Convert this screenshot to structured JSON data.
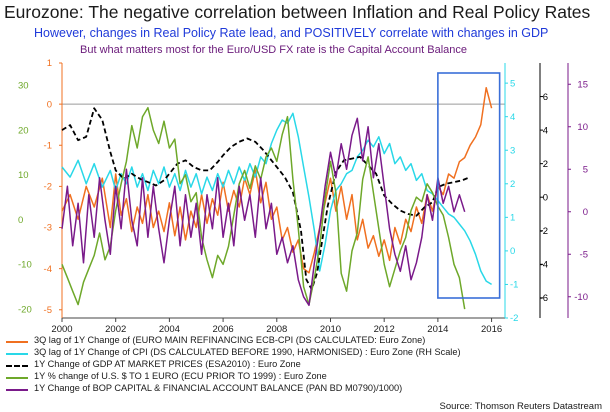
{
  "chart_data": {
    "type": "line",
    "title": "Eurozone: The negative correlation between Inflation and Real Policy Rates",
    "subtitle": "However, changes in Real Policy Rate lead, and POSITIVELY correlate with changes in GDP",
    "subtitle2": "But what matters most for the Euro/USD FX rate is the Capital Account Balance",
    "source": "Source: Thomson Reuters Datastream",
    "x_ticks": [
      "2000",
      "2002",
      "2004",
      "2006",
      "2008",
      "2010",
      "2012",
      "2014",
      "2016"
    ],
    "xlim": [
      2000,
      2016.5
    ],
    "axes": {
      "left_outer": {
        "ticks": [
          "30",
          "20",
          "10",
          "0",
          "-10",
          "-20"
        ],
        "ylim": [
          -22,
          35
        ],
        "color": "#6ea82a"
      },
      "left_inner": {
        "ticks": [
          "1",
          "0",
          "-1",
          "-2",
          "-3",
          "-4",
          "-5"
        ],
        "ylim": [
          -5.2,
          1.0
        ],
        "color": "#f07020"
      },
      "right_inner": {
        "ticks": [
          "-2",
          "-1",
          "0",
          "1",
          "2",
          "3",
          "4",
          "5"
        ],
        "ylim": [
          -2.0,
          5.6
        ],
        "color": "#29d8e8"
      },
      "right_mid": {
        "ticks": [
          "6",
          "4",
          "2",
          "0",
          "-2",
          "-4",
          "-6"
        ],
        "ylim": [
          -7.2,
          8.0
        ],
        "color": "#000000"
      },
      "right_outer": {
        "ticks": [
          "15",
          "10",
          "5",
          "0",
          "-5",
          "-10"
        ],
        "ylim": [
          -12.5,
          17.5
        ],
        "color": "#7a1a8a"
      }
    },
    "reference_line": {
      "axis": "left_inner",
      "value": 0
    },
    "highlight_box": {
      "x_range": [
        2014.0,
        2016.3
      ],
      "color": "#3a6fd8"
    },
    "series": [
      {
        "name": "3Q lag of 1Y Change of (EURO MAIN REFINANCING ECB-CPI (DS CALCULATED: Euro Zone)",
        "axis": "left_inner",
        "color": "#f07020",
        "dash": false,
        "x": [
          2000,
          2000.3,
          2000.6,
          2000.9,
          2001.2,
          2001.5,
          2001.8,
          2002,
          2002.2,
          2002.4,
          2002.6,
          2002.8,
          2003,
          2003.2,
          2003.4,
          2003.6,
          2003.8,
          2004,
          2004.2,
          2004.4,
          2004.6,
          2004.8,
          2005,
          2005.2,
          2005.4,
          2005.6,
          2005.8,
          2006,
          2006.2,
          2006.4,
          2006.6,
          2006.8,
          2007,
          2007.2,
          2007.4,
          2007.6,
          2007.8,
          2008,
          2008.2,
          2008.4,
          2008.6,
          2008.8,
          2009,
          2009.2,
          2009.4,
          2009.6,
          2009.8,
          2010,
          2010.2,
          2010.4,
          2010.6,
          2010.8,
          2011,
          2011.2,
          2011.4,
          2011.6,
          2011.8,
          2012,
          2012.2,
          2012.4,
          2012.6,
          2012.8,
          2013,
          2013.2,
          2013.4,
          2013.6,
          2013.8,
          2014,
          2014.2,
          2014.4,
          2014.6,
          2014.8,
          2015,
          2015.2,
          2015.4,
          2015.6,
          2015.8,
          2016
        ],
        "y": [
          -2.6,
          -2.2,
          -2.8,
          -2.0,
          -2.5,
          -1.8,
          -3.0,
          -1.7,
          -2.7,
          -2.3,
          -3.1,
          -2.5,
          -2.9,
          -2.2,
          -3.0,
          -2.6,
          -3.1,
          -2.4,
          -3.2,
          -2.5,
          -3.3,
          -2.6,
          -3.0,
          -2.2,
          -2.9,
          -2.3,
          -2.7,
          -1.9,
          -2.6,
          -2.1,
          -2.5,
          -1.8,
          -2.2,
          -1.6,
          -2.4,
          -1.9,
          -2.8,
          -2.5,
          -3.3,
          -3.0,
          -3.6,
          -3.3,
          -4.0,
          -4.1,
          -3.6,
          -3.0,
          -2.4,
          -1.8,
          -2.6,
          -2.0,
          -2.8,
          -2.2,
          -3.3,
          -2.8,
          -3.5,
          -3.2,
          -3.7,
          -3.3,
          -3.8,
          -3.0,
          -3.4,
          -2.8,
          -3.1,
          -2.5,
          -2.9,
          -2.2,
          -2.6,
          -2.0,
          -2.2,
          -1.7,
          -1.8,
          -1.4,
          -1.3,
          -1.0,
          -0.8,
          -0.5,
          0.4,
          -0.1
        ]
      },
      {
        "name": "3Q lag of 1Y Change of CPI (DS CALCULATED BEFORE 1990, HARMONISED) : Euro Zone (RH Scale)",
        "axis": "right_inner",
        "color": "#29d8e8",
        "dash": false,
        "x": [
          2000,
          2000.3,
          2000.6,
          2000.9,
          2001.2,
          2001.5,
          2001.8,
          2002,
          2002.2,
          2002.4,
          2002.6,
          2002.8,
          2003,
          2003.2,
          2003.4,
          2003.6,
          2003.8,
          2004,
          2004.2,
          2004.4,
          2004.6,
          2004.8,
          2005,
          2005.2,
          2005.4,
          2005.6,
          2005.8,
          2006,
          2006.2,
          2006.4,
          2006.6,
          2006.8,
          2007,
          2007.2,
          2007.4,
          2007.6,
          2007.8,
          2008,
          2008.2,
          2008.4,
          2008.6,
          2008.8,
          2009,
          2009.2,
          2009.4,
          2009.6,
          2009.8,
          2010,
          2010.2,
          2010.4,
          2010.6,
          2010.8,
          2011,
          2011.2,
          2011.4,
          2011.6,
          2011.8,
          2012,
          2012.2,
          2012.4,
          2012.6,
          2012.8,
          2013,
          2013.2,
          2013.4,
          2013.6,
          2013.8,
          2014,
          2014.2,
          2014.4,
          2014.6,
          2014.8,
          2015,
          2015.2,
          2015.4,
          2015.6,
          2015.8,
          2016
        ],
        "y": [
          2.5,
          2.2,
          2.7,
          2.0,
          2.6,
          1.9,
          2.4,
          1.8,
          2.3,
          2.0,
          2.5,
          1.9,
          2.3,
          1.8,
          2.4,
          2.0,
          2.5,
          1.9,
          2.3,
          1.8,
          2.4,
          1.9,
          2.3,
          1.7,
          2.2,
          1.8,
          2.3,
          1.9,
          2.4,
          2.0,
          2.5,
          2.1,
          2.6,
          2.2,
          2.8,
          2.6,
          3.2,
          3.6,
          3.9,
          3.8,
          4.1,
          3.4,
          2.5,
          1.6,
          0.6,
          -0.6,
          0.2,
          1.2,
          1.8,
          2.0,
          2.3,
          2.4,
          2.8,
          3.0,
          3.3,
          3.1,
          3.4,
          2.9,
          3.2,
          2.6,
          2.8,
          2.4,
          2.6,
          2.1,
          2.3,
          1.8,
          1.7,
          1.5,
          1.3,
          1.1,
          1.0,
          0.8,
          0.6,
          0.3,
          -0.1,
          -0.6,
          -0.9,
          -1.0
        ]
      },
      {
        "name": "1Y Change of GDP AT MARKET PRICES (ESA2010) : Euro Zone",
        "axis": "right_mid",
        "color": "#000000",
        "dash": true,
        "x": [
          2000,
          2000.3,
          2000.6,
          2000.9,
          2001.2,
          2001.5,
          2001.8,
          2002,
          2002.3,
          2002.6,
          2002.9,
          2003.2,
          2003.5,
          2003.8,
          2004,
          2004.3,
          2004.6,
          2004.9,
          2005.2,
          2005.5,
          2005.8,
          2006,
          2006.3,
          2006.6,
          2006.9,
          2007.2,
          2007.5,
          2007.8,
          2008,
          2008.3,
          2008.6,
          2008.9,
          2009.1,
          2009.3,
          2009.5,
          2009.7,
          2009.9,
          2010.2,
          2010.5,
          2010.8,
          2011.1,
          2011.4,
          2011.7,
          2012,
          2012.3,
          2012.6,
          2012.9,
          2013.2,
          2013.5,
          2013.8,
          2014,
          2014.3,
          2014.6,
          2014.9,
          2015.2
        ],
        "y": [
          4.0,
          4.3,
          3.4,
          3.6,
          5.3,
          4.6,
          2.7,
          1.6,
          1.1,
          1.4,
          1.1,
          0.9,
          0.7,
          1.0,
          1.4,
          2.0,
          2.2,
          1.8,
          1.6,
          1.6,
          2.1,
          2.5,
          3.0,
          3.3,
          3.5,
          3.3,
          2.8,
          2.2,
          1.8,
          1.2,
          0.3,
          -2.0,
          -4.9,
          -5.5,
          -4.5,
          -2.5,
          -0.5,
          1.5,
          2.2,
          2.3,
          2.4,
          1.9,
          1.4,
          0.1,
          -0.4,
          -0.8,
          -1.0,
          -1.1,
          -0.6,
          -0.3,
          0.6,
          0.8,
          0.9,
          1.0,
          1.2
        ]
      },
      {
        "name": "1Y % change of U.S. $ TO 1 EURO (ECU PRIOR TO 1999) : Euro Zone",
        "axis": "left_outer",
        "color": "#6ea82a",
        "dash": false,
        "x": [
          2000,
          2000.2,
          2000.4,
          2000.6,
          2000.8,
          2001,
          2001.2,
          2001.4,
          2001.6,
          2001.8,
          2002,
          2002.2,
          2002.4,
          2002.6,
          2002.8,
          2003,
          2003.2,
          2003.4,
          2003.6,
          2003.8,
          2004,
          2004.2,
          2004.4,
          2004.6,
          2004.8,
          2005,
          2005.2,
          2005.4,
          2005.6,
          2005.8,
          2006,
          2006.2,
          2006.4,
          2006.6,
          2006.8,
          2007,
          2007.2,
          2007.4,
          2007.6,
          2007.8,
          2008,
          2008.2,
          2008.4,
          2008.6,
          2008.8,
          2009,
          2009.2,
          2009.4,
          2009.6,
          2009.8,
          2010,
          2010.2,
          2010.4,
          2010.6,
          2010.8,
          2011,
          2011.2,
          2011.4,
          2011.6,
          2011.8,
          2012,
          2012.2,
          2012.4,
          2012.6,
          2012.8,
          2013,
          2013.2,
          2013.4,
          2013.6,
          2013.8,
          2014,
          2014.2,
          2014.4,
          2014.6,
          2014.8,
          2015
        ],
        "y": [
          -10,
          -13,
          -16,
          -19,
          -14,
          -11,
          -8,
          -3,
          -9,
          -6,
          2,
          8,
          13,
          21,
          16,
          23,
          25,
          20,
          17,
          22,
          16,
          18,
          8,
          10,
          4,
          6,
          -4,
          -9,
          -13,
          -8,
          -10,
          -6,
          1,
          8,
          11,
          7,
          12,
          9,
          14,
          16,
          13,
          19,
          23,
          9,
          -2,
          -15,
          -19,
          -13,
          -6,
          5,
          13,
          6,
          -12,
          -16,
          -7,
          -3,
          9,
          14,
          6,
          -2,
          -10,
          -15,
          -11,
          -7,
          -4,
          2,
          5,
          4,
          8,
          6,
          3,
          1,
          -4,
          -10,
          -13,
          -20
        ]
      },
      {
        "name": "1Y Change of  BOP CAPITAL & FINANCIAL ACCOUNT BALANCE (PAN BD M0790)/1000)",
        "axis": "right_outer",
        "color": "#7a1a8a",
        "dash": false,
        "x": [
          2000,
          2000.2,
          2000.4,
          2000.6,
          2000.8,
          2001,
          2001.2,
          2001.4,
          2001.6,
          2001.8,
          2002,
          2002.2,
          2002.4,
          2002.6,
          2002.8,
          2003,
          2003.2,
          2003.4,
          2003.6,
          2003.8,
          2004,
          2004.2,
          2004.4,
          2004.6,
          2004.8,
          2005,
          2005.2,
          2005.4,
          2005.6,
          2005.8,
          2006,
          2006.2,
          2006.4,
          2006.6,
          2006.8,
          2007,
          2007.2,
          2007.4,
          2007.6,
          2007.8,
          2008,
          2008.2,
          2008.4,
          2008.6,
          2008.8,
          2009,
          2009.2,
          2009.4,
          2009.6,
          2009.8,
          2010,
          2010.2,
          2010.4,
          2010.6,
          2010.8,
          2011,
          2011.2,
          2011.4,
          2011.6,
          2011.8,
          2012,
          2012.2,
          2012.4,
          2012.6,
          2012.8,
          2013,
          2013.2,
          2013.4,
          2013.6,
          2013.8,
          2014,
          2014.2,
          2014.4,
          2014.6,
          2014.8,
          2015
        ],
        "y": [
          -2,
          3,
          -4,
          1,
          -6,
          2,
          -3,
          4,
          -1,
          -5,
          3,
          -2,
          5,
          -1,
          -4,
          4,
          -3,
          3,
          -2,
          -6,
          -1,
          3,
          -4,
          2,
          -3,
          1,
          -5,
          2,
          -2,
          4,
          -3,
          1,
          -4,
          3,
          -1,
          2,
          -3,
          4,
          -2,
          1,
          -5,
          -3,
          -6,
          -4,
          -8,
          -10,
          -11,
          -6,
          -2,
          3,
          7,
          4,
          8,
          5,
          9,
          11,
          6,
          10,
          4,
          8,
          3,
          -2,
          -5,
          -7,
          -4,
          -8,
          -6,
          -3,
          2,
          -1,
          4,
          1,
          3,
          0,
          2,
          0
        ]
      }
    ]
  }
}
